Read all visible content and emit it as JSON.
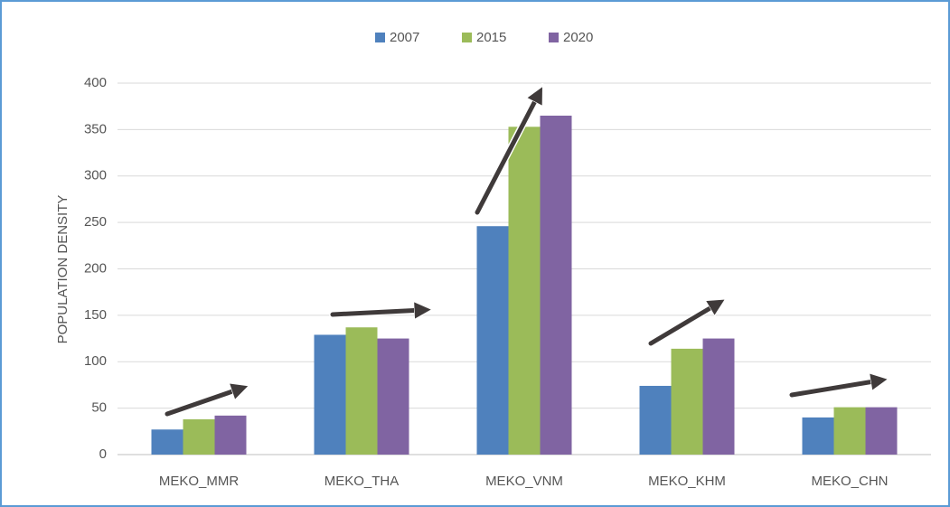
{
  "chart_data": {
    "type": "bar",
    "y_label": "POPULATION DENSITY",
    "categories": [
      "MEKO_MMR",
      "MEKO_THA",
      "MEKO_VNM",
      "MEKO_KHM",
      "MEKO_CHN"
    ],
    "series": [
      {
        "name": "2007",
        "color": "#4f81bd",
        "values": [
          27,
          129,
          246,
          74,
          40
        ]
      },
      {
        "name": "2015",
        "color": "#9bbb59",
        "values": [
          38,
          137,
          353,
          114,
          51
        ]
      },
      {
        "name": "2020",
        "color": "#8064a2",
        "values": [
          42,
          125,
          365,
          125,
          51
        ]
      }
    ],
    "ylim": [
      0,
      400
    ],
    "yticks": [
      0,
      50,
      100,
      150,
      200,
      250,
      300,
      350,
      400
    ],
    "grid": true,
    "legend": "top"
  }
}
